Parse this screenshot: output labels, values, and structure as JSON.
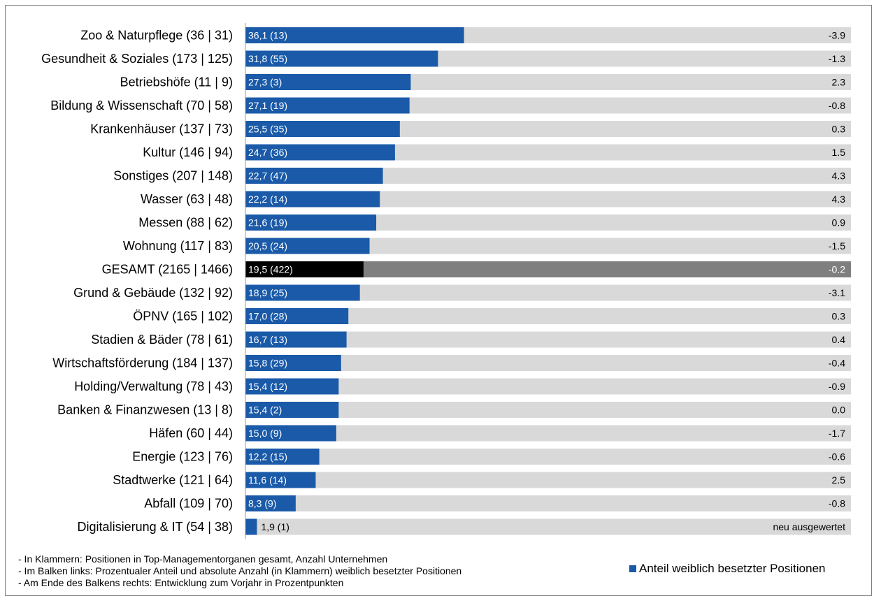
{
  "colors": {
    "bar": "#1a5aa8",
    "track": "#d9d9d9",
    "total_bar": "#000000",
    "total_track": "#7f7f7f",
    "text": "#000000",
    "bar_label": "#ffffff"
  },
  "chart_data": {
    "type": "bar",
    "orientation": "horizontal",
    "xlim": [
      0,
      100
    ],
    "categories": [
      "Zoo & Naturpflege (36 | 31)",
      "Gesundheit & Soziales (173 | 125)",
      "Betriebshöfe (11 | 9)",
      "Bildung & Wissenschaft (70 | 58)",
      "Krankenhäuser (137 | 73)",
      "Kultur (146 | 94)",
      "Sonstiges (207 | 148)",
      "Wasser (63 | 48)",
      "Messen (88 | 62)",
      "Wohnung (117 | 83)",
      "GESAMT (2165 | 1466)",
      "Grund & Gebäude (132 | 92)",
      "ÖPNV (165 | 102)",
      "Stadien & Bäder (78 | 61)",
      "Wirtschaftsförderung (184 | 137)",
      "Holding/Verwaltung (78 | 43)",
      "Banken & Finanzwesen (13 | 8)",
      "Häfen (60 | 44)",
      "Energie (123 | 76)",
      "Stadtwerke (121 | 64)",
      "Abfall (109 | 70)",
      "Digitalisierung & IT (54 | 38)"
    ],
    "values": [
      36.1,
      31.8,
      27.3,
      27.1,
      25.5,
      24.7,
      22.7,
      22.2,
      21.6,
      20.5,
      19.5,
      18.9,
      17.0,
      16.7,
      15.8,
      15.4,
      15.4,
      15.0,
      12.2,
      11.6,
      8.3,
      1.9
    ],
    "bar_labels": [
      "36,1 (13)",
      "31,8 (55)",
      "27,3 (3)",
      "27,1 (19)",
      "25,5 (35)",
      "24,7 (36)",
      "22,7 (47)",
      "22,2 (14)",
      "21,6 (19)",
      "20,5 (24)",
      "19,5 (422)",
      "18,9 (25)",
      "17,0 (28)",
      "16,7 (13)",
      "15,8 (29)",
      "15,4 (12)",
      "15,4 (2)",
      "15,0 (9)",
      "12,2 (15)",
      "11,6 (14)",
      "8,3 (9)",
      "1,9 (1)"
    ],
    "changes": [
      "-3.9",
      "-1.3",
      "2.3",
      "-0.8",
      "0.3",
      "1.5",
      "4.3",
      "4.3",
      "0.9",
      "-1.5",
      "-0.2",
      "-3.1",
      "0.3",
      "0.4",
      "-0.4",
      "-0.9",
      "0.0",
      "-1.7",
      "-0.6",
      "2.5",
      "-0.8",
      "neu ausgewertet"
    ],
    "highlight_category": "GESAMT (2165 | 1466)",
    "legend": [
      "Anteil weiblich besetzter Positionen"
    ],
    "legend_position": "bottom-right"
  },
  "footnotes": [
    "- In Klammern: Positionen in Top-Managementorganen gesamt, Anzahl Unternehmen",
    "- Im Balken links: Prozentualer Anteil und absolute Anzahl (in Klammern) weiblich besetzter Positionen",
    "- Am Ende des Balkens rechts: Entwicklung zum Vorjahr in Prozentpunkten"
  ]
}
